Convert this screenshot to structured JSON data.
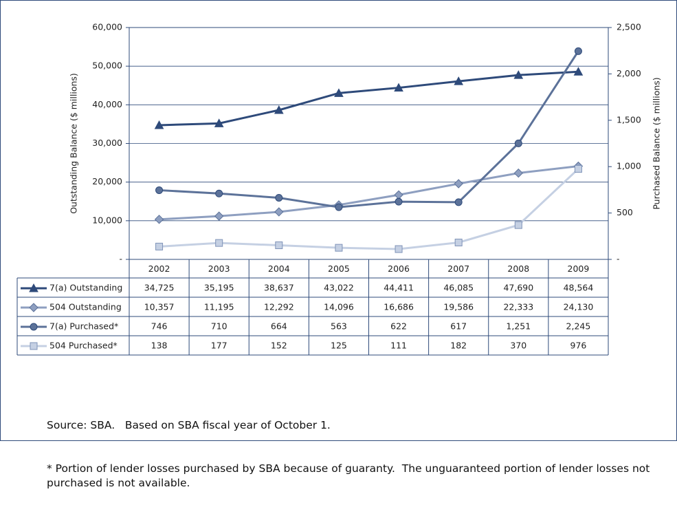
{
  "chart_data": {
    "type": "line",
    "categories": [
      "2002",
      "2003",
      "2004",
      "2005",
      "2006",
      "2007",
      "2008",
      "2009"
    ],
    "ylabel": "Outstanding Balance ($ millions)",
    "y2label": "Purchased Balance ($ millions)",
    "ylim": [
      0,
      60000
    ],
    "yticks": [
      {
        "value": 0,
        "label": "-"
      },
      {
        "value": 10000,
        "label": "10,000"
      },
      {
        "value": 20000,
        "label": "20,000"
      },
      {
        "value": 30000,
        "label": "30,000"
      },
      {
        "value": 40000,
        "label": "40,000"
      },
      {
        "value": 50000,
        "label": "50,000"
      },
      {
        "value": 60000,
        "label": "60,000"
      }
    ],
    "y2lim": [
      0,
      2500
    ],
    "y2ticks": [
      {
        "value": 0,
        "label": "-"
      },
      500,
      {
        "value": 1000,
        "label": "1,000"
      },
      {
        "value": 1500,
        "label": "1,500"
      },
      {
        "value": 2000,
        "label": "2,000"
      },
      {
        "value": 2500,
        "label": "2,500"
      }
    ],
    "grid": true,
    "series": [
      {
        "name": "7(a) Outstanding",
        "color": "#2e4a7a",
        "marker": "triangle",
        "axis": "y",
        "values": [
          34725,
          35195,
          38637,
          43022,
          44411,
          46085,
          47690,
          48564
        ],
        "value_labels": [
          "34,725",
          "35,195",
          "38,637",
          "43,022",
          "44,411",
          "46,085",
          "47,690",
          "48,564"
        ]
      },
      {
        "name": "504 Outstanding",
        "color": "#8e9fc0",
        "marker": "diamond",
        "axis": "y",
        "values": [
          10357,
          11195,
          12292,
          14096,
          16686,
          19586,
          22333,
          24130
        ],
        "value_labels": [
          "10,357",
          "11,195",
          "12,292",
          "14,096",
          "16,686",
          "19,586",
          "22,333",
          "24,130"
        ]
      },
      {
        "name": "7(a) Purchased*",
        "color": "#5c7299",
        "marker": "circle",
        "axis": "y2",
        "values": [
          746,
          710,
          664,
          563,
          622,
          617,
          1251,
          2245
        ],
        "value_labels": [
          "746",
          "710",
          "664",
          "563",
          "622",
          "617",
          "1,251",
          "2,245"
        ]
      },
      {
        "name": "504 Purchased*",
        "color": "#c5d0e3",
        "marker": "square",
        "axis": "y2",
        "values": [
          138,
          177,
          152,
          125,
          111,
          182,
          370,
          976
        ],
        "value_labels": [
          "138",
          "177",
          "152",
          "125",
          "111",
          "182",
          "370",
          "976"
        ]
      }
    ],
    "notes": [
      "Source: SBA.   Based on SBA fiscal year of October 1.",
      "* Portion of lender losses purchased by SBA because of guaranty.  The unguaranteed portion of lender losses not purchased is not available."
    ]
  }
}
